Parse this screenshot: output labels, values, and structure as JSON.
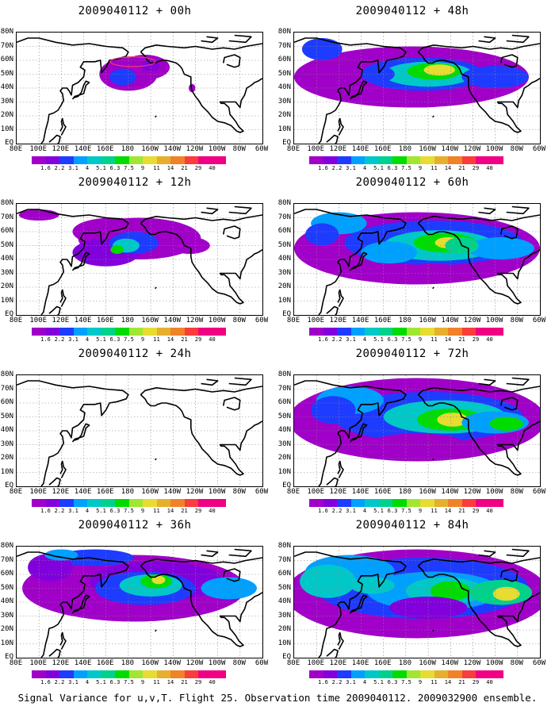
{
  "panels": [
    {
      "title": "2009040112 + 00h",
      "col": 0,
      "row": 0
    },
    {
      "title": "2009040112 + 48h",
      "col": 1,
      "row": 0
    },
    {
      "title": "2009040112 + 12h",
      "col": 0,
      "row": 1
    },
    {
      "title": "2009040112 + 60h",
      "col": 1,
      "row": 1
    },
    {
      "title": "2009040112 + 24h",
      "col": 0,
      "row": 2
    },
    {
      "title": "2009040112 + 72h",
      "col": 1,
      "row": 2
    },
    {
      "title": "2009040112 + 36h",
      "col": 0,
      "row": 3
    },
    {
      "title": "2009040112 + 84h",
      "col": 1,
      "row": 3
    }
  ],
  "lat_ticks": [
    "80N",
    "70N",
    "60N",
    "50N",
    "40N",
    "30N",
    "20N",
    "10N",
    "EQ"
  ],
  "lon_ticks": [
    "80E",
    "100E",
    "120E",
    "140E",
    "160E",
    "180",
    "160W",
    "140W",
    "120W",
    "100W",
    "80W",
    "60W"
  ],
  "colorbar": {
    "levels": [
      "1.6",
      "2.2",
      "3.1",
      "4",
      "5.1",
      "6.3",
      "7.5",
      "9",
      "11",
      "14",
      "21",
      "29",
      "40"
    ],
    "colors": [
      "#a000c8",
      "#8200dc",
      "#1e3cff",
      "#00a0ff",
      "#00c8c8",
      "#00d28c",
      "#00dc00",
      "#a0e632",
      "#e6dc32",
      "#e6af2d",
      "#f08228",
      "#fa3c3c",
      "#f00082"
    ]
  },
  "footer": "Signal Variance for u,v,T. Flight 25. Observation time 2009040112. 2009032900 ensemble."
}
